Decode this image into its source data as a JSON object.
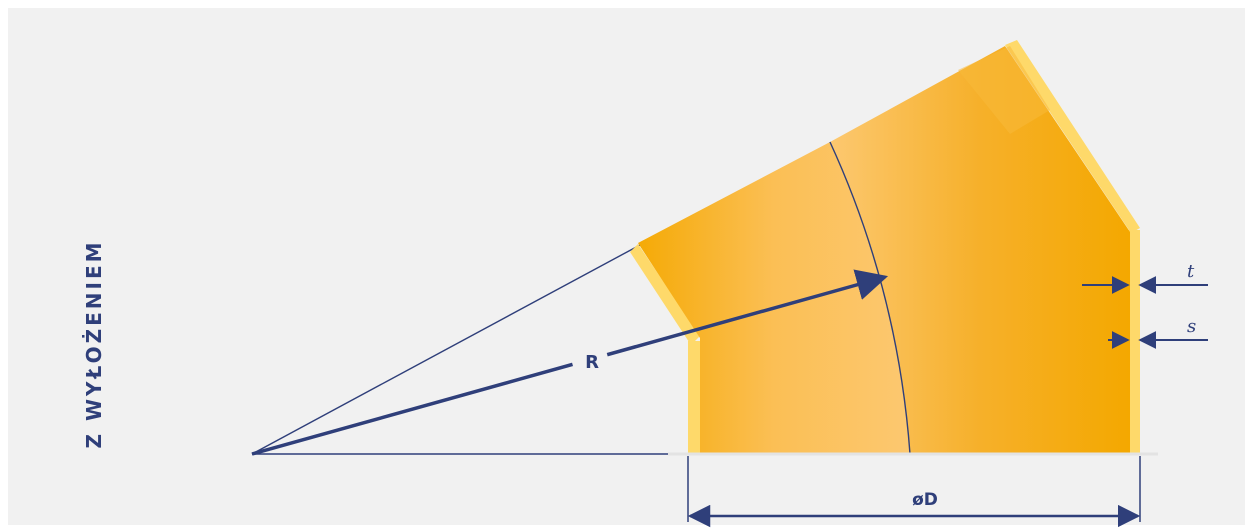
{
  "diagram": {
    "side_label": "Z WYŁOŻENIEM",
    "labels": {
      "radius": "R",
      "lining_thickness": "t",
      "wall_thickness": "s",
      "diameter": "øD"
    },
    "colors": {
      "background": "#f1f1f1",
      "segment_dark": "#f5ab08",
      "segment_light": "#fcc66a",
      "lining": "#fed96a",
      "dimension_line": "#2f3f7a"
    }
  }
}
